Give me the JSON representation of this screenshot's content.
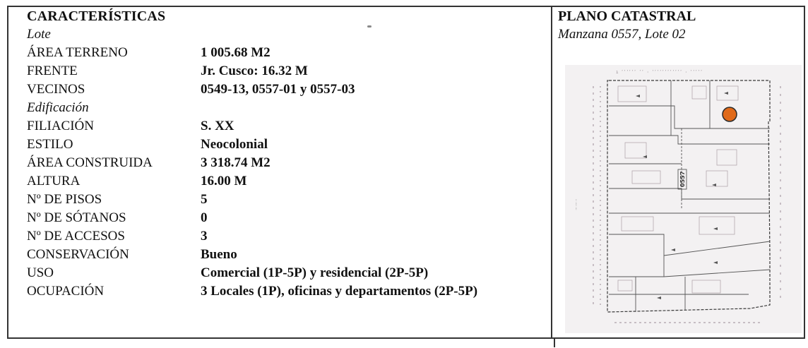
{
  "left": {
    "title": "CARACTERÍSTICAS",
    "lote_heading": "Lote",
    "lote_rows": [
      {
        "label": "ÁREA TERRENO",
        "value": "1 005.68 M2"
      },
      {
        "label": "FRENTE",
        "value": "Jr. Cusco: 16.32 M"
      },
      {
        "label": "VECINOS",
        "value": "0549-13, 0557-01 y 0557-03"
      }
    ],
    "edificacion_heading": "Edificación",
    "edif_rows": [
      {
        "label": "FILIACIÓN",
        "value": "S. XX"
      },
      {
        "label": "ESTILO",
        "value": "Neocolonial"
      },
      {
        "label": "ÁREA CONSTRUIDA",
        "value": "3 318.74 M2"
      },
      {
        "label": "ALTURA",
        "value": "16.00 M"
      },
      {
        "label": "Nº DE PISOS",
        "value": "5"
      },
      {
        "label": "Nº DE SÓTANOS",
        "value": "0"
      },
      {
        "label": "Nº DE ACCESOS",
        "value": "3"
      },
      {
        "label": "CONSERVACIÓN",
        "value": "Bueno"
      },
      {
        "label": "USO",
        "value": "Comercial (1P-5P) y residencial (2P-5P)"
      },
      {
        "label": "OCUPACIÓN",
        "value": "3 Locales (1P), oficinas y departamentos (2P-5P)"
      }
    ]
  },
  "right": {
    "title": "PLANO CATASTRAL",
    "caption": "Manzana 0557, Lote 02",
    "map_block_label": "0557",
    "marker_color": "#e06a1a"
  }
}
